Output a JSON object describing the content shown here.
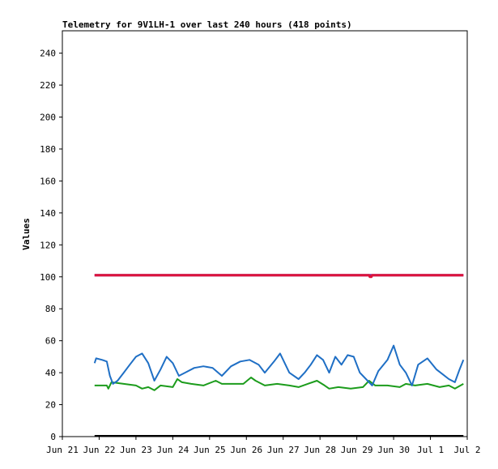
{
  "chart_data": {
    "type": "line",
    "title": "Telemetry for 9V1LH-1 over last 240 hours (418 points)",
    "ylabel": "Values",
    "xlabel": "",
    "ylim": [
      0,
      254
    ],
    "yticks": [
      0,
      20,
      40,
      60,
      80,
      100,
      120,
      140,
      160,
      180,
      200,
      220,
      240
    ],
    "xlim": [
      "2025-06-21T00:00",
      "2025-07-02T00:00"
    ],
    "xticks": [
      {
        "t": "2025-06-21T00:00",
        "label": "Jun 21"
      },
      {
        "t": "2025-06-22T00:00",
        "label": "Jun 22"
      },
      {
        "t": "2025-06-23T00:00",
        "label": "Jun 23"
      },
      {
        "t": "2025-06-24T00:00",
        "label": "Jun 24"
      },
      {
        "t": "2025-06-25T00:00",
        "label": "Jun 25"
      },
      {
        "t": "2025-06-26T00:00",
        "label": "Jun 26"
      },
      {
        "t": "2025-06-27T00:00",
        "label": "Jun 27"
      },
      {
        "t": "2025-06-28T00:00",
        "label": "Jun 28"
      },
      {
        "t": "2025-06-29T00:00",
        "label": "Jun 29"
      },
      {
        "t": "2025-06-30T00:00",
        "label": "Jun 30"
      },
      {
        "t": "2025-07-01T00:00",
        "label": "Jul 1"
      },
      {
        "t": "2025-07-02T00:00",
        "label": "Jul 2"
      }
    ],
    "grid": false,
    "legend": "none",
    "series": [
      {
        "color": "#7a1fa2",
        "points": [
          [
            "2025-06-21T21:00",
            101
          ],
          [
            "2025-07-01T21:30",
            101
          ]
        ]
      },
      {
        "color": "#dc143c",
        "points": [
          [
            "2025-06-21T21:00",
            101
          ],
          [
            "2025-06-29T08:00",
            101
          ],
          [
            "2025-06-29T08:30",
            100
          ],
          [
            "2025-06-29T09:30",
            100
          ],
          [
            "2025-06-29T10:00",
            101
          ],
          [
            "2025-07-01T21:30",
            101
          ]
        ]
      },
      {
        "color": "#000000",
        "points": [
          [
            "2025-06-21T21:00",
            0.5
          ],
          [
            "2025-07-01T21:30",
            0.5
          ]
        ]
      },
      {
        "color": "#1c9c1c",
        "points": [
          [
            "2025-06-21T21:00",
            32
          ],
          [
            "2025-06-22T05:00",
            32
          ],
          [
            "2025-06-22T06:00",
            30
          ],
          [
            "2025-06-22T08:00",
            34
          ],
          [
            "2025-06-22T16:00",
            33
          ],
          [
            "2025-06-23T00:00",
            32
          ],
          [
            "2025-06-23T04:00",
            30
          ],
          [
            "2025-06-23T08:00",
            31
          ],
          [
            "2025-06-23T12:00",
            29
          ],
          [
            "2025-06-23T16:00",
            32
          ],
          [
            "2025-06-24T00:00",
            31
          ],
          [
            "2025-06-24T03:00",
            36
          ],
          [
            "2025-06-24T06:00",
            34
          ],
          [
            "2025-06-24T12:00",
            33
          ],
          [
            "2025-06-24T20:00",
            32
          ],
          [
            "2025-06-25T04:00",
            35
          ],
          [
            "2025-06-25T08:00",
            33
          ],
          [
            "2025-06-25T16:00",
            33
          ],
          [
            "2025-06-25T22:00",
            33
          ],
          [
            "2025-06-26T03:00",
            37
          ],
          [
            "2025-06-26T06:00",
            35
          ],
          [
            "2025-06-26T12:00",
            32
          ],
          [
            "2025-06-26T20:00",
            33
          ],
          [
            "2025-06-27T04:00",
            32
          ],
          [
            "2025-06-27T10:00",
            31
          ],
          [
            "2025-06-27T16:00",
            33
          ],
          [
            "2025-06-27T22:00",
            35
          ],
          [
            "2025-06-28T03:00",
            32
          ],
          [
            "2025-06-28T06:00",
            30
          ],
          [
            "2025-06-28T12:00",
            31
          ],
          [
            "2025-06-28T20:00",
            30
          ],
          [
            "2025-06-29T04:00",
            31
          ],
          [
            "2025-06-29T08:00",
            35
          ],
          [
            "2025-06-29T12:00",
            32
          ],
          [
            "2025-06-29T20:00",
            32
          ],
          [
            "2025-06-30T04:00",
            31
          ],
          [
            "2025-06-30T08:00",
            33
          ],
          [
            "2025-06-30T14:00",
            32
          ],
          [
            "2025-06-30T22:00",
            33
          ],
          [
            "2025-07-01T06:00",
            31
          ],
          [
            "2025-07-01T12:00",
            32
          ],
          [
            "2025-07-01T16:00",
            30
          ],
          [
            "2025-07-01T21:30",
            33
          ]
        ]
      },
      {
        "color": "#1f6fc5",
        "points": [
          [
            "2025-06-21T21:00",
            46
          ],
          [
            "2025-06-21T22:00",
            49
          ],
          [
            "2025-06-22T02:00",
            48
          ],
          [
            "2025-06-22T05:00",
            47
          ],
          [
            "2025-06-22T07:00",
            38
          ],
          [
            "2025-06-22T09:00",
            33
          ],
          [
            "2025-06-22T12:00",
            35
          ],
          [
            "2025-06-22T16:00",
            40
          ],
          [
            "2025-06-22T20:00",
            45
          ],
          [
            "2025-06-23T00:00",
            50
          ],
          [
            "2025-06-23T04:00",
            52
          ],
          [
            "2025-06-23T08:00",
            46
          ],
          [
            "2025-06-23T12:00",
            35
          ],
          [
            "2025-06-23T16:00",
            42
          ],
          [
            "2025-06-23T20:00",
            50
          ],
          [
            "2025-06-24T00:00",
            46
          ],
          [
            "2025-06-24T04:00",
            38
          ],
          [
            "2025-06-24T08:00",
            40
          ],
          [
            "2025-06-24T14:00",
            43
          ],
          [
            "2025-06-24T20:00",
            44
          ],
          [
            "2025-06-25T02:00",
            43
          ],
          [
            "2025-06-25T08:00",
            38
          ],
          [
            "2025-06-25T14:00",
            44
          ],
          [
            "2025-06-25T20:00",
            47
          ],
          [
            "2025-06-26T02:00",
            48
          ],
          [
            "2025-06-26T08:00",
            45
          ],
          [
            "2025-06-26T12:00",
            40
          ],
          [
            "2025-06-26T18:00",
            47
          ],
          [
            "2025-06-26T22:00",
            52
          ],
          [
            "2025-06-27T04:00",
            40
          ],
          [
            "2025-06-27T10:00",
            36
          ],
          [
            "2025-06-27T14:00",
            40
          ],
          [
            "2025-06-27T18:00",
            45
          ],
          [
            "2025-06-27T22:00",
            51
          ],
          [
            "2025-06-28T02:00",
            48
          ],
          [
            "2025-06-28T06:00",
            40
          ],
          [
            "2025-06-28T10:00",
            50
          ],
          [
            "2025-06-28T14:00",
            45
          ],
          [
            "2025-06-28T18:00",
            51
          ],
          [
            "2025-06-28T22:00",
            50
          ],
          [
            "2025-06-29T02:00",
            40
          ],
          [
            "2025-06-29T06:00",
            36
          ],
          [
            "2025-06-29T10:00",
            32
          ],
          [
            "2025-06-29T14:00",
            41
          ],
          [
            "2025-06-29T20:00",
            48
          ],
          [
            "2025-06-30T00:00",
            57
          ],
          [
            "2025-06-30T04:00",
            45
          ],
          [
            "2025-06-30T08:00",
            40
          ],
          [
            "2025-06-30T12:00",
            32
          ],
          [
            "2025-06-30T16:00",
            45
          ],
          [
            "2025-06-30T22:00",
            49
          ],
          [
            "2025-07-01T04:00",
            42
          ],
          [
            "2025-07-01T08:00",
            39
          ],
          [
            "2025-07-01T12:00",
            36
          ],
          [
            "2025-07-01T16:00",
            34
          ],
          [
            "2025-07-01T19:00",
            42
          ],
          [
            "2025-07-01T21:30",
            48
          ]
        ]
      }
    ]
  }
}
